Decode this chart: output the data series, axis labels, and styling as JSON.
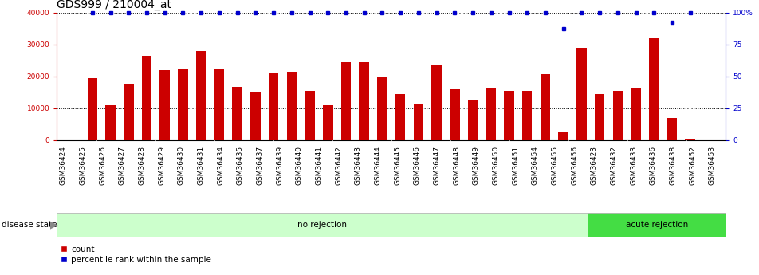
{
  "title": "GDS999 / 210004_at",
  "categories": [
    "GSM36424",
    "GSM36425",
    "GSM36426",
    "GSM36427",
    "GSM36428",
    "GSM36429",
    "GSM36430",
    "GSM36431",
    "GSM36434",
    "GSM36435",
    "GSM36437",
    "GSM36439",
    "GSM36440",
    "GSM36441",
    "GSM36442",
    "GSM36443",
    "GSM36444",
    "GSM36445",
    "GSM36446",
    "GSM36447",
    "GSM36448",
    "GSM36449",
    "GSM36450",
    "GSM36451",
    "GSM36454",
    "GSM36455",
    "GSM36456",
    "GSM36423",
    "GSM36432",
    "GSM36433",
    "GSM36436",
    "GSM36438",
    "GSM36452",
    "GSM36453"
  ],
  "bar_values": [
    19500,
    11000,
    17500,
    26500,
    22000,
    22500,
    28000,
    22500,
    16800,
    15000,
    21000,
    21500,
    15500,
    11000,
    24500,
    24500,
    20000,
    14500,
    11500,
    23500,
    16000,
    12800,
    16500,
    15500,
    15500,
    20800,
    2800,
    29000,
    14500,
    15500,
    16500,
    32000,
    7000,
    500
  ],
  "percentile_values": [
    100,
    100,
    100,
    100,
    100,
    100,
    100,
    100,
    100,
    100,
    100,
    100,
    100,
    100,
    100,
    100,
    100,
    100,
    100,
    100,
    100,
    100,
    100,
    100,
    100,
    100,
    87,
    100,
    100,
    100,
    100,
    100,
    92,
    100
  ],
  "bar_color": "#cc0000",
  "dot_color": "#0000cc",
  "ylim_left": [
    0,
    40000
  ],
  "ylim_right": [
    0,
    100
  ],
  "yticks_left": [
    0,
    10000,
    20000,
    30000,
    40000
  ],
  "yticks_right": [
    0,
    25,
    50,
    75,
    100
  ],
  "no_rejection_count": 27,
  "acute_rejection_count": 7,
  "no_rejection_label": "no rejection",
  "acute_rejection_label": "acute rejection",
  "disease_state_label": "disease state",
  "legend_count_label": "count",
  "legend_percentile_label": "percentile rank within the sample",
  "bg_color": "#ffffff",
  "no_rejection_bg": "#ccffcc",
  "acute_rejection_bg": "#44dd44",
  "title_fontsize": 10,
  "tick_fontsize": 6.5,
  "label_fontsize": 8
}
